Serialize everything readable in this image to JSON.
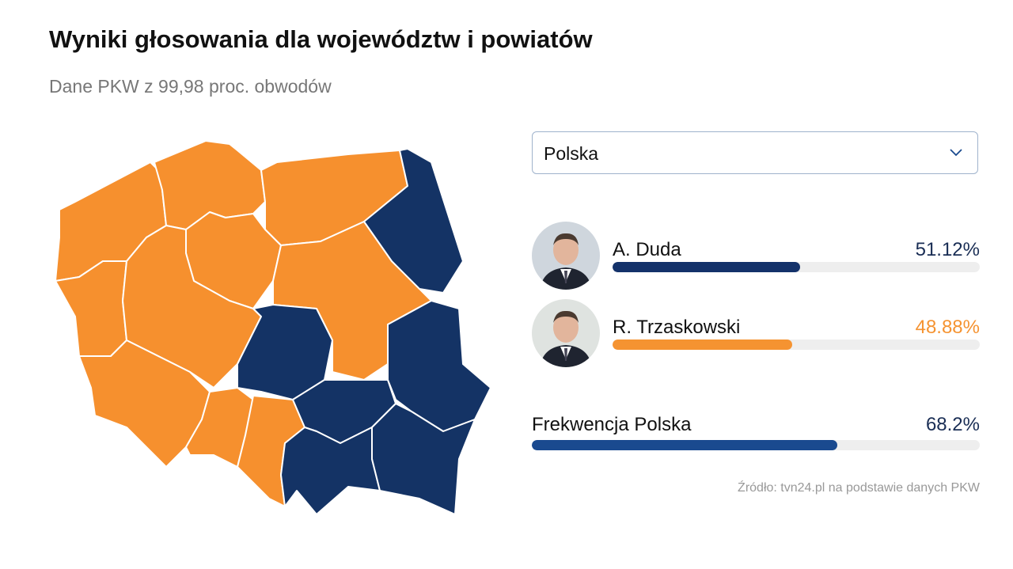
{
  "header": {
    "title": "Wyniki głosowania dla województw i powiatów",
    "subtitle": "Dane PKW z 99,98 proc. obwodów"
  },
  "selector": {
    "label": "Polska"
  },
  "candidates": [
    {
      "name": "A. Duda",
      "value": 51.12,
      "value_label": "51.12%",
      "color": "#14326a"
    },
    {
      "name": "R. Trzaskowski",
      "value": 48.88,
      "value_label": "48.88%",
      "color": "#f59331"
    }
  ],
  "turnout": {
    "label": "Frekwencja Polska",
    "value": 68.2,
    "value_label": "68.2%",
    "color": "#1a4a8f"
  },
  "source": "Źródło: tvn24.pl na podstawie danych PKW"
}
